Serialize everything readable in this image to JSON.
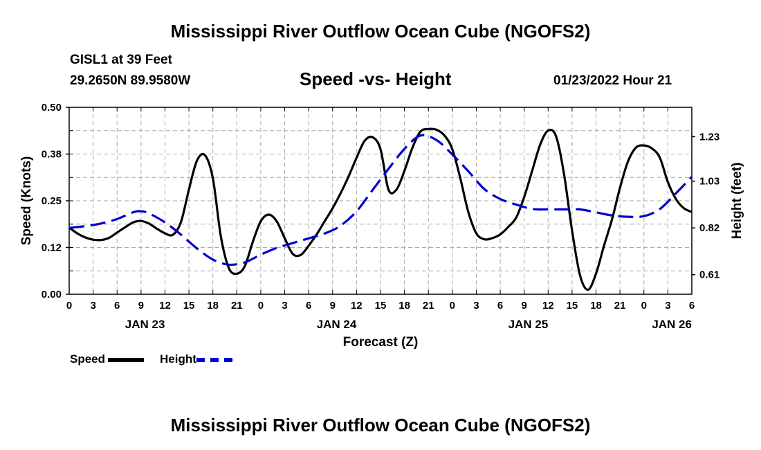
{
  "header": {
    "title_top": "Mississippi River Outflow Ocean Cube (NGOFS2)",
    "station": "GISL1 at 39 Feet",
    "coords": "29.2650N  89.9580W",
    "subtitle": "Speed -vs- Height",
    "datetime": "01/23/2022 Hour 21",
    "title_bottom": "Mississippi River Outflow Ocean Cube (NGOFS2)"
  },
  "legend": {
    "speed_label": "Speed",
    "height_label": "Height",
    "speed_color": "#000000",
    "height_color": "#0000cc"
  },
  "chart_data": {
    "type": "line",
    "title": "Speed -vs- Height",
    "xlabel": "Forecast (Z)",
    "ylabel": "Speed (Knots)",
    "y2label": "Height (feet)",
    "xlim": [
      0,
      78
    ],
    "ylim": [
      0,
      0.5
    ],
    "y2lim": [
      0.522,
      1.362
    ],
    "grid": true,
    "x_tick_labels": [
      "0",
      "3",
      "6",
      "9",
      "12",
      "15",
      "18",
      "21",
      "0",
      "3",
      "6",
      "9",
      "12",
      "15",
      "18",
      "21",
      "0",
      "3",
      "6",
      "9",
      "12",
      "15",
      "18",
      "21",
      "0",
      "3",
      "6"
    ],
    "y_ticks": [
      {
        "value": 0.0,
        "label": "0.00"
      },
      {
        "value": 0.125,
        "label": "0.12"
      },
      {
        "value": 0.25,
        "label": "0.25"
      },
      {
        "value": 0.375,
        "label": "0.38"
      },
      {
        "value": 0.5,
        "label": "0.50"
      }
    ],
    "y2_ticks": [
      {
        "value": 0.61,
        "label": "0.61"
      },
      {
        "value": 0.82,
        "label": "0.82"
      },
      {
        "value": 1.03,
        "label": "1.03"
      },
      {
        "value": 1.23,
        "label": "1.23"
      }
    ],
    "day_labels": [
      {
        "x": 9.5,
        "label": "JAN 23"
      },
      {
        "x": 33.5,
        "label": "JAN 24"
      },
      {
        "x": 57.5,
        "label": "JAN 25"
      },
      {
        "x": 75.5,
        "label": "JAN 26"
      }
    ],
    "series": [
      {
        "name": "Speed",
        "axis": "left",
        "style": "solid",
        "x": [
          0,
          1,
          2,
          3,
          4,
          5,
          6,
          7,
          8,
          9,
          10,
          11,
          12,
          13,
          14,
          15,
          16,
          17,
          18,
          19,
          20,
          21,
          22,
          23,
          24,
          25,
          26,
          27,
          28,
          29,
          30,
          31,
          32,
          33,
          34,
          35,
          36,
          37,
          38,
          39,
          40,
          41,
          42,
          43,
          44,
          45,
          46,
          47,
          48,
          49,
          50,
          51,
          52,
          53,
          54,
          55,
          56,
          57,
          58,
          59,
          60,
          61,
          62,
          63,
          64,
          65,
          66,
          67,
          68,
          69,
          70,
          71,
          72,
          73,
          74,
          75,
          76,
          77,
          78
        ],
        "values": [
          0.178,
          0.163,
          0.152,
          0.146,
          0.145,
          0.151,
          0.165,
          0.179,
          0.192,
          0.196,
          0.189,
          0.175,
          0.163,
          0.159,
          0.193,
          0.28,
          0.357,
          0.372,
          0.31,
          0.155,
          0.07,
          0.055,
          0.075,
          0.14,
          0.195,
          0.213,
          0.195,
          0.15,
          0.108,
          0.105,
          0.13,
          0.16,
          0.195,
          0.23,
          0.27,
          0.315,
          0.365,
          0.41,
          0.42,
          0.388,
          0.28,
          0.28,
          0.33,
          0.392,
          0.435,
          0.442,
          0.44,
          0.425,
          0.388,
          0.31,
          0.22,
          0.163,
          0.147,
          0.15,
          0.16,
          0.18,
          0.205,
          0.26,
          0.33,
          0.4,
          0.438,
          0.422,
          0.32,
          0.17,
          0.05,
          0.012,
          0.055,
          0.13,
          0.2,
          0.285,
          0.355,
          0.392,
          0.398,
          0.39,
          0.365,
          0.3,
          0.255,
          0.23,
          0.22
        ]
      },
      {
        "name": "Height",
        "axis": "right",
        "style": "dashed",
        "x": [
          0,
          2,
          4,
          6,
          8,
          9,
          10,
          12,
          14,
          16,
          18,
          20,
          22,
          24,
          26,
          28,
          30,
          32,
          34,
          36,
          38,
          40,
          42,
          44,
          46,
          48,
          50,
          52,
          54,
          56,
          58,
          60,
          62,
          64,
          66,
          68,
          70,
          72,
          74,
          76,
          78
        ],
        "values": [
          0.82,
          0.828,
          0.84,
          0.86,
          0.89,
          0.895,
          0.885,
          0.845,
          0.79,
          0.728,
          0.678,
          0.655,
          0.665,
          0.7,
          0.73,
          0.752,
          0.773,
          0.795,
          0.83,
          0.895,
          0.99,
          1.085,
          1.175,
          1.235,
          1.215,
          1.15,
          1.075,
          0.995,
          0.95,
          0.925,
          0.905,
          0.903,
          0.903,
          0.903,
          0.89,
          0.876,
          0.87,
          0.873,
          0.905,
          0.975,
          1.05
        ]
      }
    ]
  }
}
